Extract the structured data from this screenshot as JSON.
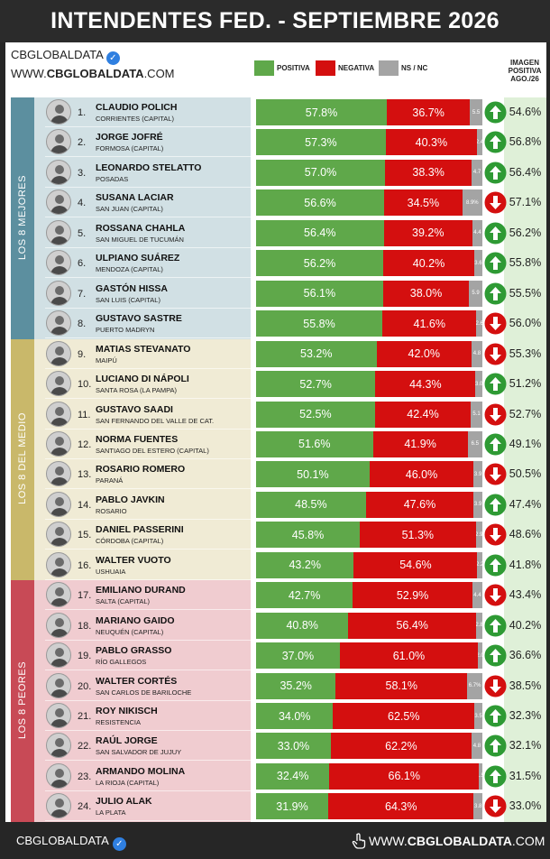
{
  "title": "INTENDENTES FED. - SEPTIEMBRE 2026",
  "brand": {
    "name": "CBGLOBALDATA",
    "site_prefix": "WWW.",
    "site_bold": "CBGLOBALDATA",
    "site_suffix": ".COM"
  },
  "legend": {
    "positive": "POSITIVA",
    "negative": "NEGATIVA",
    "ns": "NS / NC"
  },
  "image_header": [
    "IMAGEN",
    "POSITIVA",
    "AGO./26"
  ],
  "groups": [
    {
      "label": "LOS 8 MEJORES",
      "color": "#5c8f9f"
    },
    {
      "label": "LOS 8 DEL MEDIO",
      "color": "#c9b86a"
    },
    {
      "label": "LOS 8 PEORES",
      "color": "#c84a56"
    }
  ],
  "colors": {
    "positive": "#5fa84a",
    "negative": "#d40f0f",
    "ns": "#a4a4a4",
    "up": "#2e9a34",
    "down": "#d40f0f"
  },
  "chart_data": {
    "type": "bar",
    "stacked": true,
    "title": "INTENDENTES FED. - SEPTIEMBRE 2026",
    "series_names": [
      "POSITIVA",
      "NEGATIVA",
      "NS / NC"
    ],
    "rows": [
      {
        "rank": "1.",
        "name": "CLAUDIO POLICH",
        "city": "CORRIENTES (CAPITAL)",
        "pos": "57.8%",
        "neg": "36.7%",
        "ns": "5.5",
        "trend": "up",
        "prev": "54.6%"
      },
      {
        "rank": "2.",
        "name": "JORGE JOFRÉ",
        "city": "FORMOSA (CAPITAL)",
        "pos": "57.3%",
        "neg": "40.3%",
        "ns": "2.4",
        "trend": "up",
        "prev": "56.8%"
      },
      {
        "rank": "3.",
        "name": "LEONARDO STELATTO",
        "city": "POSADAS",
        "pos": "57.0%",
        "neg": "38.3%",
        "ns": "4.7",
        "trend": "up",
        "prev": "56.4%"
      },
      {
        "rank": "4.",
        "name": "SUSANA LACIAR",
        "city": "SAN JUAN (CAPITAL)",
        "pos": "56.6%",
        "neg": "34.5%",
        "ns": "8.9%",
        "trend": "down",
        "prev": "57.1%"
      },
      {
        "rank": "5.",
        "name": "ROSSANA CHAHLA",
        "city": "SAN MIGUEL DE TUCUMÁN",
        "pos": "56.4%",
        "neg": "39.2%",
        "ns": "4.4",
        "trend": "up",
        "prev": "56.2%"
      },
      {
        "rank": "6.",
        "name": "ULPIANO SUÁREZ",
        "city": "MENDOZA (CAPITAL)",
        "pos": "56.2%",
        "neg": "40.2%",
        "ns": "3.6",
        "trend": "up",
        "prev": "55.8%"
      },
      {
        "rank": "7.",
        "name": "GASTÓN HISSA",
        "city": "SAN LUIS (CAPITAL)",
        "pos": "56.1%",
        "neg": "38.0%",
        "ns": "5.9",
        "trend": "up",
        "prev": "55.5%"
      },
      {
        "rank": "8.",
        "name": "GUSTAVO SASTRE",
        "city": "PUERTO MADRYN",
        "pos": "55.8%",
        "neg": "41.6%",
        "ns": "2.6",
        "trend": "down",
        "prev": "56.0%"
      },
      {
        "rank": "9.",
        "name": "MATIAS STEVANATO",
        "city": "MAIPÚ",
        "pos": "53.2%",
        "neg": "42.0%",
        "ns": "4.8",
        "trend": "down",
        "prev": "55.3%"
      },
      {
        "rank": "10.",
        "name": "LUCIANO DI NÁPOLI",
        "city": "SANTA ROSA (LA PAMPA)",
        "pos": "52.7%",
        "neg": "44.3%",
        "ns": "3.0",
        "trend": "up",
        "prev": "51.2%"
      },
      {
        "rank": "11.",
        "name": "GUSTAVO SAADI",
        "city": "SAN FERNANDO DEL VALLE DE CAT.",
        "pos": "52.5%",
        "neg": "42.4%",
        "ns": "5.1",
        "trend": "down",
        "prev": "52.7%"
      },
      {
        "rank": "12.",
        "name": "NORMA FUENTES",
        "city": "SANTIAGO DEL ESTERO (CAPITAL)",
        "pos": "51.6%",
        "neg": "41.9%",
        "ns": "6.5",
        "trend": "up",
        "prev": "49.1%"
      },
      {
        "rank": "13.",
        "name": "ROSARIO ROMERO",
        "city": "PARANÁ",
        "pos": "50.1%",
        "neg": "46.0%",
        "ns": "3.9",
        "trend": "down",
        "prev": "50.5%"
      },
      {
        "rank": "14.",
        "name": "PABLO JAVKIN",
        "city": "ROSARIO",
        "pos": "48.5%",
        "neg": "47.6%",
        "ns": "3.9",
        "trend": "up",
        "prev": "47.4%"
      },
      {
        "rank": "15.",
        "name": "DANIEL PASSERINI",
        "city": "CÓRDOBA (CAPITAL)",
        "pos": "45.8%",
        "neg": "51.3%",
        "ns": "2.9",
        "trend": "down",
        "prev": "48.6%"
      },
      {
        "rank": "16.",
        "name": "WALTER VUOTO",
        "city": "USHUAIA",
        "pos": "43.2%",
        "neg": "54.6%",
        "ns": "2.2",
        "trend": "up",
        "prev": "41.8%"
      },
      {
        "rank": "17.",
        "name": "EMILIANO DURAND",
        "city": "SALTA (CAPITAL)",
        "pos": "42.7%",
        "neg": "52.9%",
        "ns": "4.4",
        "trend": "down",
        "prev": "43.4%"
      },
      {
        "rank": "18.",
        "name": "MARIANO GAIDO",
        "city": "NEUQUÉN (CAPITAL)",
        "pos": "40.8%",
        "neg": "56.4%",
        "ns": "2.8",
        "trend": "up",
        "prev": "40.2%"
      },
      {
        "rank": "19.",
        "name": "PABLO GRASSO",
        "city": "RÍO GALLEGOS",
        "pos": "37.0%",
        "neg": "61.0%",
        "ns": "2.0",
        "trend": "up",
        "prev": "36.6%"
      },
      {
        "rank": "20.",
        "name": "WALTER CORTÉS",
        "city": "SAN CARLOS DE BARILOCHE",
        "pos": "35.2%",
        "neg": "58.1%",
        "ns": "6.7%",
        "trend": "down",
        "prev": "38.5%"
      },
      {
        "rank": "21.",
        "name": "ROY NIKISCH",
        "city": "RESISTENCIA",
        "pos": "34.0%",
        "neg": "62.5%",
        "ns": "3.5",
        "trend": "up",
        "prev": "32.3%"
      },
      {
        "rank": "22.",
        "name": "RAÚL JORGE",
        "city": "SAN SALVADOR DE JUJUY",
        "pos": "33.0%",
        "neg": "62.2%",
        "ns": "4.8",
        "trend": "up",
        "prev": "32.1%"
      },
      {
        "rank": "23.",
        "name": "ARMANDO MOLINA",
        "city": "LA RIOJA (CAPITAL)",
        "pos": "32.4%",
        "neg": "66.1%",
        "ns": "1.5",
        "trend": "up",
        "prev": "31.5%"
      },
      {
        "rank": "24.",
        "name": "JULIO ALAK",
        "city": "LA PLATA",
        "pos": "31.9%",
        "neg": "64.3%",
        "ns": "3.8",
        "trend": "down",
        "prev": "33.0%"
      }
    ]
  },
  "footer": {
    "left": "CBGLOBALDATA",
    "right_prefix": "WWW.",
    "right_bold": "CBGLOBALDATA",
    "right_suffix": ".COM"
  }
}
